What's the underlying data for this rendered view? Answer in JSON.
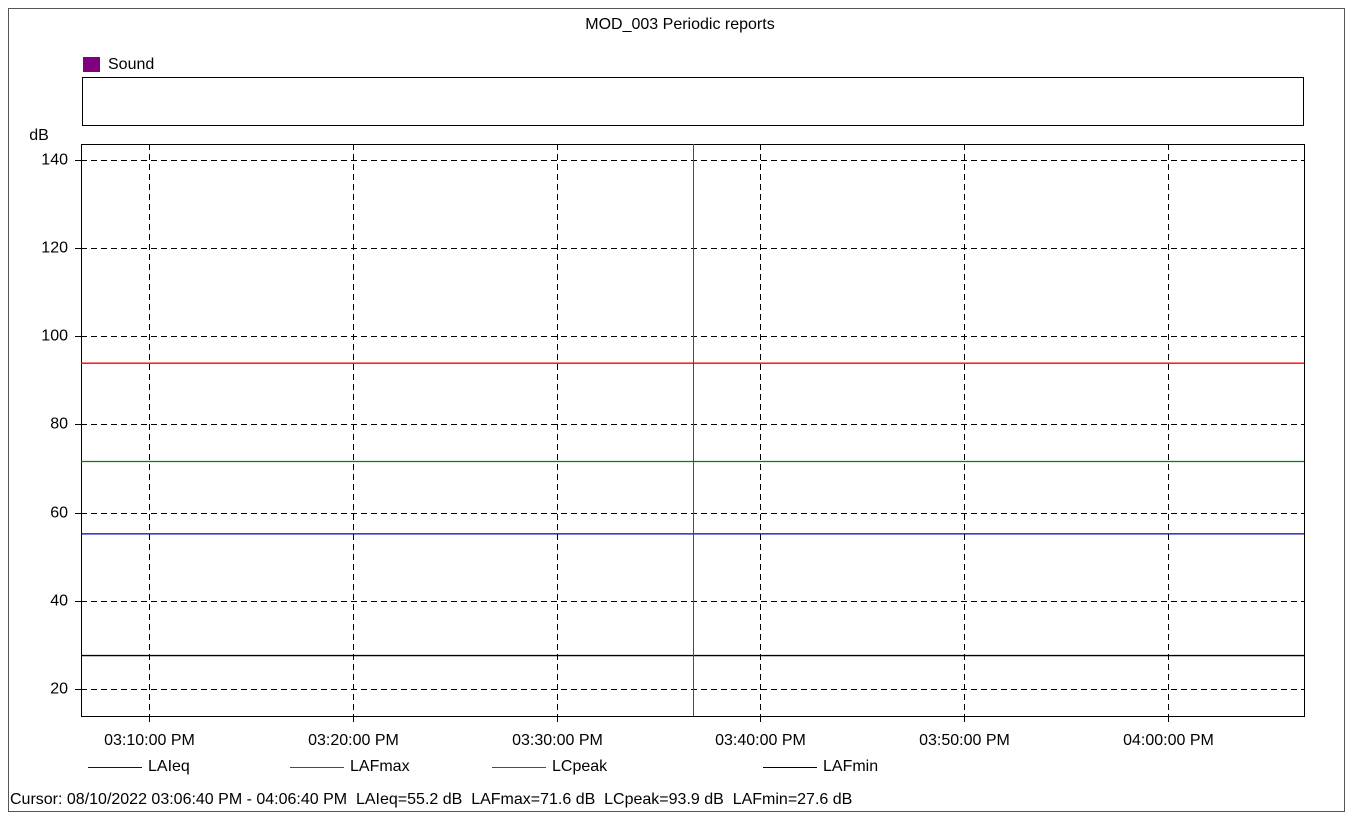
{
  "chart_data": {
    "type": "line",
    "title": "MOD_003 Periodic reports",
    "group_legend": {
      "name": "Sound",
      "color": "#800080"
    },
    "y_label": "dB",
    "x": [
      54400,
      58000
    ],
    "xlim": [
      54400,
      58000
    ],
    "xticks": [
      {
        "value": 54600,
        "label": "03:10:00 PM"
      },
      {
        "value": 55200,
        "label": "03:20:00 PM"
      },
      {
        "value": 55800,
        "label": "03:30:00 PM"
      },
      {
        "value": 56400,
        "label": "03:40:00 PM"
      },
      {
        "value": 57000,
        "label": "03:50:00 PM"
      },
      {
        "value": 57600,
        "label": "04:00:00 PM"
      }
    ],
    "ylim": [
      13.9,
      143.6
    ],
    "yticks": [
      20,
      40,
      60,
      80,
      100,
      120,
      140
    ],
    "grid": true,
    "series": [
      {
        "name": "LAIeq",
        "color": "#0000c0",
        "values": [
          55.2,
          55.2
        ]
      },
      {
        "name": "LAFmax",
        "color": "#008000",
        "values": [
          71.6,
          71.6
        ]
      },
      {
        "name": "LCpeak",
        "color": "#ff0000",
        "values": [
          93.9,
          93.9
        ]
      },
      {
        "name": "LAFmin",
        "color": "#000000",
        "values": [
          27.6,
          27.6
        ]
      }
    ],
    "cursor": {
      "x": 56200,
      "color": "#ff0000"
    },
    "status": "Cursor: 08/10/2022 03:06:40 PM - 04:06:40 PM  LAIeq=55.2 dB  LAFmax=71.6 dB  LCpeak=93.9 dB  LAFmin=27.6 dB"
  }
}
